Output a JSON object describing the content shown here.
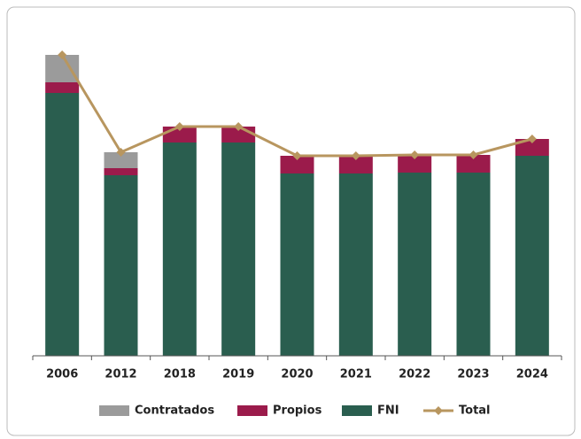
{
  "chart_data": {
    "type": "bar",
    "stacked": true,
    "categories": [
      "2006",
      "2012",
      "2018",
      "2019",
      "2020",
      "2021",
      "2022",
      "2023",
      "2024"
    ],
    "series": [
      {
        "name": "FNI",
        "color": "#2a5e4f",
        "values": [
          297,
          204,
          241,
          241,
          206,
          206,
          207,
          207,
          226
        ]
      },
      {
        "name": "Propios",
        "color": "#9b1b4b",
        "values": [
          12,
          8,
          18,
          18,
          20,
          20,
          20,
          20,
          19
        ]
      },
      {
        "name": "Contratados",
        "color": "#9b9b9b",
        "values": [
          31,
          18,
          0,
          0,
          0,
          0,
          0,
          0,
          0
        ]
      },
      {
        "name": "Total",
        "type": "line",
        "color": "#b8965f",
        "values": [
          340,
          230,
          259,
          259,
          226,
          226,
          227,
          227,
          245
        ]
      }
    ],
    "legend_order": [
      "Contratados",
      "Propios",
      "FNI",
      "Total"
    ]
  }
}
